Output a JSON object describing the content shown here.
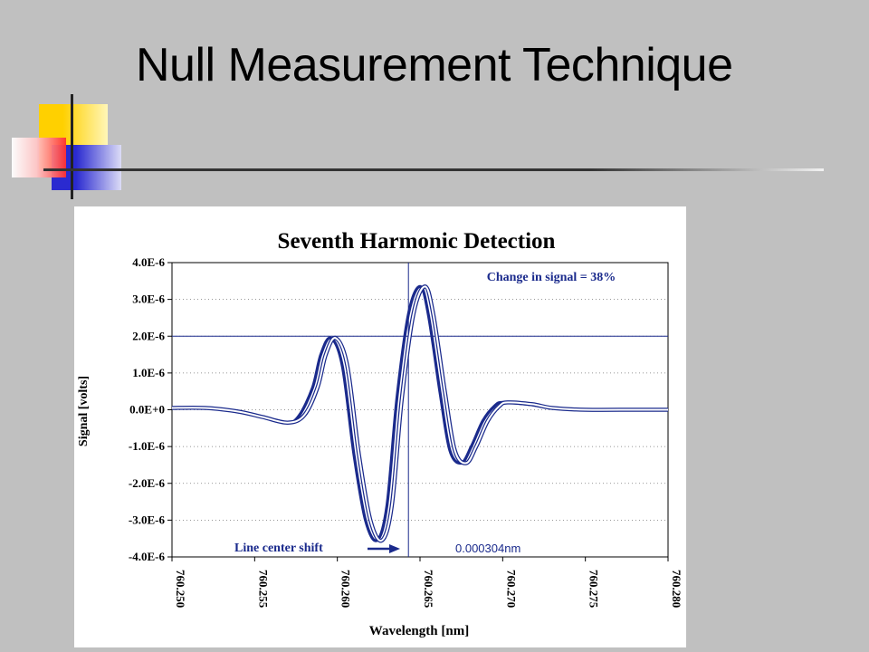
{
  "slide": {
    "title": "Null Measurement Technique"
  },
  "chart_data": {
    "type": "line",
    "title": "Seventh Harmonic Detection",
    "xlabel": "Wavelength [nm]",
    "ylabel": "Signal [volts]",
    "xlim": [
      760.25,
      760.28
    ],
    "ylim": [
      -4e-06,
      4e-06
    ],
    "x_ticks": [
      760.25,
      760.255,
      760.26,
      760.265,
      760.27,
      760.275,
      760.28
    ],
    "x_tick_labels": [
      "760.250",
      "760.255",
      "760.260",
      "760.265",
      "760.270",
      "760.275",
      "760.280"
    ],
    "y_ticks": [
      4e-06,
      3e-06,
      2e-06,
      1e-06,
      0,
      -1e-06,
      -2e-06,
      -3e-06,
      -4e-06
    ],
    "y_tick_labels": [
      "4.0E-6",
      "3.0E-6",
      "2.0E-6",
      "1.0E-6",
      "0.0E+0",
      "-1.0E-6",
      "-2.0E-6",
      "-3.0E-6",
      "-4.0E-6"
    ],
    "grid": {
      "horizontal": true,
      "vertical": false
    },
    "reference_lines": {
      "y": 2e-06,
      "x": 760.2643
    },
    "series": [
      {
        "style": "thick",
        "color": "#1a2a8c",
        "x": [
          760.25,
          760.252,
          760.254,
          760.2555,
          760.257,
          760.2577,
          760.2585,
          760.259,
          760.2596,
          760.2603,
          760.261,
          760.2617,
          760.2624,
          760.263,
          760.2636,
          760.2643,
          760.265,
          760.2655,
          760.2662,
          760.2668,
          760.2675,
          760.2681,
          760.2688,
          760.2695,
          760.27,
          760.2715,
          760.273,
          760.275,
          760.278,
          760.28
        ],
        "y": [
          5e-08,
          5e-08,
          -5e-08,
          -2e-07,
          -3.5e-07,
          -1.5e-07,
          6e-07,
          1.5e-06,
          1.95e-06,
          1.2e-06,
          -1.2e-06,
          -3e-06,
          -3.55e-06,
          -2.6e-06,
          3e-07,
          2.6e-06,
          3.35e-06,
          2.6e-06,
          5e-07,
          -1.1e-06,
          -1.45e-06,
          -1e-06,
          -3e-07,
          1e-07,
          2e-07,
          1.5e-07,
          5e-08,
          0.0,
          0.0,
          0.0
        ]
      },
      {
        "style": "thin",
        "color": "#1a2a8c",
        "x": [
          760.25,
          760.252,
          760.254,
          760.2555,
          760.257,
          760.258,
          760.2588,
          760.2593,
          760.2599,
          760.2606,
          760.2613,
          760.262,
          760.2627,
          760.2633,
          760.2639,
          760.2646,
          760.2653,
          760.2658,
          760.2665,
          760.2671,
          760.2678,
          760.2684,
          760.2691,
          760.2698,
          760.2703,
          760.2718,
          760.273,
          760.275,
          760.278,
          760.28
        ],
        "y": [
          5e-08,
          5e-08,
          -5e-08,
          -2e-07,
          -3.5e-07,
          -1.5e-07,
          6e-07,
          1.5e-06,
          1.95e-06,
          1.2e-06,
          -1.2e-06,
          -3e-06,
          -3.55e-06,
          -2.6e-06,
          3e-07,
          2.6e-06,
          3.35e-06,
          2.6e-06,
          5e-07,
          -1.1e-06,
          -1.45e-06,
          -1e-06,
          -3e-07,
          1e-07,
          2e-07,
          1.5e-07,
          5e-08,
          0.0,
          0.0,
          0.0
        ]
      }
    ],
    "annotations": {
      "change_label": "Change in signal = 38%",
      "shift_label": "Line center shift",
      "shift_value": "0.000304nm"
    }
  }
}
